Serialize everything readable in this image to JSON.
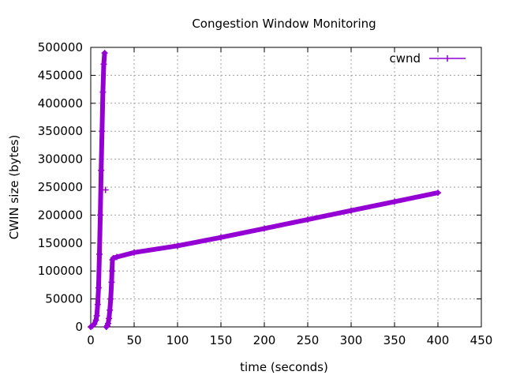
{
  "chart_data": {
    "type": "line",
    "title": "Congestion Window Monitoring",
    "xlabel": "time (seconds)",
    "ylabel": "CWIN size (bytes)",
    "xlim": [
      0,
      450
    ],
    "ylim": [
      0,
      500000
    ],
    "xticks": [
      "0",
      "50",
      "100",
      "150",
      "200",
      "250",
      "300",
      "350",
      "400",
      "450"
    ],
    "yticks": [
      "0",
      "50000",
      "100000",
      "150000",
      "200000",
      "250000",
      "300000",
      "350000",
      "400000",
      "450000",
      "500000"
    ],
    "grid": true,
    "legend": {
      "position": "top-right",
      "entries": [
        "cwnd"
      ]
    },
    "colors": {
      "series": "#9400d3"
    },
    "series": [
      {
        "name": "cwnd",
        "x": [
          0,
          2,
          4,
          6,
          7,
          8,
          9,
          10,
          11,
          12,
          13,
          14,
          15,
          16,
          18,
          19,
          20,
          21,
          22,
          23,
          24,
          24.5,
          25,
          26,
          30,
          50,
          100,
          150,
          200,
          250,
          300,
          350,
          400
        ],
        "y": [
          0,
          2000,
          5000,
          12000,
          20000,
          40000,
          70000,
          130000,
          200000,
          280000,
          350000,
          420000,
          470000,
          490000,
          0,
          2000,
          6000,
          15000,
          30000,
          50000,
          80000,
          100000,
          120000,
          123000,
          125000,
          133000,
          145000,
          160000,
          176000,
          192000,
          208000,
          224000,
          240000
        ]
      }
    ],
    "isolated_points": [
      {
        "x": 17,
        "y": 245000
      }
    ]
  }
}
